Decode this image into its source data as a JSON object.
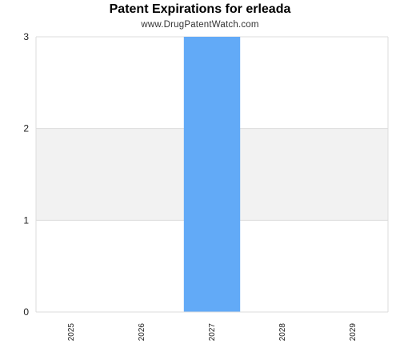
{
  "chart_data": {
    "type": "bar",
    "title": "Patent Expirations for erleada",
    "subtitle": "www.DrugPatentWatch.com",
    "categories": [
      "2025",
      "2026",
      "2027",
      "2028",
      "2029"
    ],
    "values": [
      0,
      0,
      3,
      0,
      0
    ],
    "ylim": [
      0,
      3
    ],
    "yticks": [
      0,
      1,
      2,
      3
    ],
    "xlabel": "",
    "ylabel": "",
    "grid": true,
    "bar_color": "#62aaf7",
    "band_color": "#f2f2f2",
    "grid_color": "#dcdcdc"
  }
}
